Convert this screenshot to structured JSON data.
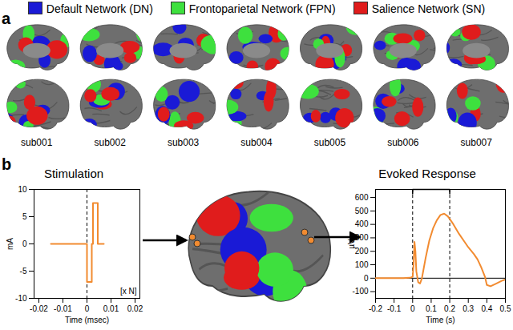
{
  "panel_a": {
    "label": "a",
    "legend": [
      {
        "name": "Default Network (DN)",
        "color": "#1a1ad6"
      },
      {
        "name": "Frontoparietal Network (FPN)",
        "color": "#3ee03e"
      },
      {
        "name": "Salience Network (SN)",
        "color": "#e01c1c"
      }
    ],
    "subjects": [
      "sub001",
      "sub002",
      "sub003",
      "sub004",
      "sub005",
      "sub006",
      "sub007"
    ]
  },
  "panel_b": {
    "label": "b"
  },
  "chart_data": [
    {
      "type": "line",
      "title": "Stimulation",
      "x_label": "Time (msec)",
      "y_label": "mA",
      "x": [
        -0.015,
        0,
        0,
        0.002,
        0.002,
        0.0025,
        0.0025,
        0.0045,
        0.0045,
        0.007
      ],
      "values": [
        0,
        0,
        -7,
        -7,
        0,
        0,
        7.5,
        7.5,
        0,
        0
      ],
      "color": "#f28b30",
      "xlim": [
        -0.022,
        0.022
      ],
      "xticks": [
        -0.02,
        -0.01,
        0,
        0.01,
        0.02
      ],
      "ylim": [
        -10,
        10
      ],
      "yticks": [
        -10,
        -5,
        0,
        5,
        10
      ],
      "annotation": "[x N]",
      "vlines": [
        0
      ]
    },
    {
      "type": "line",
      "title": "Evoked Response",
      "x_label": "Time (s)",
      "y_label": "µV",
      "x": [
        -0.2,
        -0.05,
        -0.01,
        0,
        0.005,
        0.01,
        0.015,
        0.02,
        0.03,
        0.04,
        0.05,
        0.07,
        0.09,
        0.11,
        0.13,
        0.15,
        0.17,
        0.19,
        0.2,
        0.22,
        0.25,
        0.28,
        0.3,
        0.33,
        0.35,
        0.37,
        0.39,
        0.4,
        0.42,
        0.45,
        0.48,
        0.5
      ],
      "values": [
        0,
        0,
        5,
        10,
        100,
        270,
        200,
        50,
        -30,
        -40,
        0,
        150,
        280,
        370,
        430,
        470,
        480,
        460,
        440,
        400,
        330,
        270,
        230,
        180,
        140,
        80,
        10,
        -50,
        -60,
        -40,
        -20,
        -10
      ],
      "color": "#f28b30",
      "xlim": [
        -0.2,
        0.5
      ],
      "xticks": [
        -0.2,
        -0.1,
        0,
        0.1,
        0.2,
        0.3,
        0.4,
        0.5
      ],
      "ylim": [
        -150,
        660
      ],
      "yticks": [
        -100,
        0,
        100,
        200,
        300,
        400,
        500,
        600
      ],
      "vlines": [
        0,
        0.2
      ],
      "hlines": [
        0
      ],
      "bracket": [
        0,
        0.2
      ]
    }
  ]
}
